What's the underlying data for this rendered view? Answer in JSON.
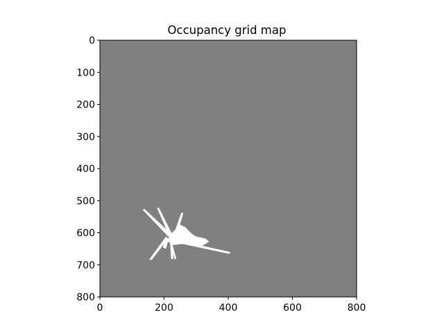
{
  "chart_data": {
    "type": "heatmap",
    "title": "Occupancy grid map",
    "xlabel": "",
    "ylabel": "",
    "xlim": [
      0,
      800
    ],
    "ylim": [
      800,
      0
    ],
    "y_axis_inverted": true,
    "grid": false,
    "legend": "none",
    "colormap": "gray",
    "xticks": [
      0,
      200,
      400,
      600,
      800
    ],
    "yticks": [
      0,
      100,
      200,
      300,
      400,
      500,
      600,
      700,
      800
    ],
    "xtick_labels": [
      "0",
      "200",
      "400",
      "600",
      "800"
    ],
    "ytick_labels": [
      "0",
      "100",
      "200",
      "300",
      "400",
      "500",
      "600",
      "700",
      "800"
    ],
    "unknown_color": "#808080",
    "free_color": "#ffffff",
    "free_regions": [
      [
        [
          215,
          610
        ],
        [
          250,
          575
        ],
        [
          265,
          582
        ],
        [
          285,
          602
        ],
        [
          300,
          612
        ],
        [
          330,
          618
        ],
        [
          340,
          628
        ],
        [
          320,
          640
        ],
        [
          255,
          635
        ],
        [
          230,
          638
        ],
        [
          212,
          628
        ]
      ],
      [
        [
          213,
          612
        ],
        [
          133,
          528
        ],
        [
          139,
          526
        ],
        [
          222,
          603
        ]
      ],
      [
        [
          217,
          612
        ],
        [
          178,
          523
        ],
        [
          184,
          522
        ],
        [
          226,
          606
        ]
      ],
      [
        [
          228,
          610
        ],
        [
          254,
          537
        ],
        [
          260,
          539
        ],
        [
          238,
          614
        ]
      ],
      [
        [
          227,
          620
        ],
        [
          406,
          660
        ],
        [
          404,
          666
        ],
        [
          225,
          628
        ]
      ],
      [
        [
          213,
          618
        ],
        [
          161,
          685
        ],
        [
          154,
          683
        ],
        [
          206,
          612
        ]
      ],
      [
        [
          214,
          620
        ],
        [
          206,
          650
        ],
        [
          196,
          646
        ],
        [
          206,
          616
        ]
      ],
      [
        [
          222,
          622
        ],
        [
          238,
          680
        ],
        [
          233,
          683
        ],
        [
          216,
          625
        ]
      ],
      [
        [
          218,
          620
        ],
        [
          222,
          682
        ],
        [
          229,
          682
        ],
        [
          226,
          618
        ]
      ]
    ]
  }
}
